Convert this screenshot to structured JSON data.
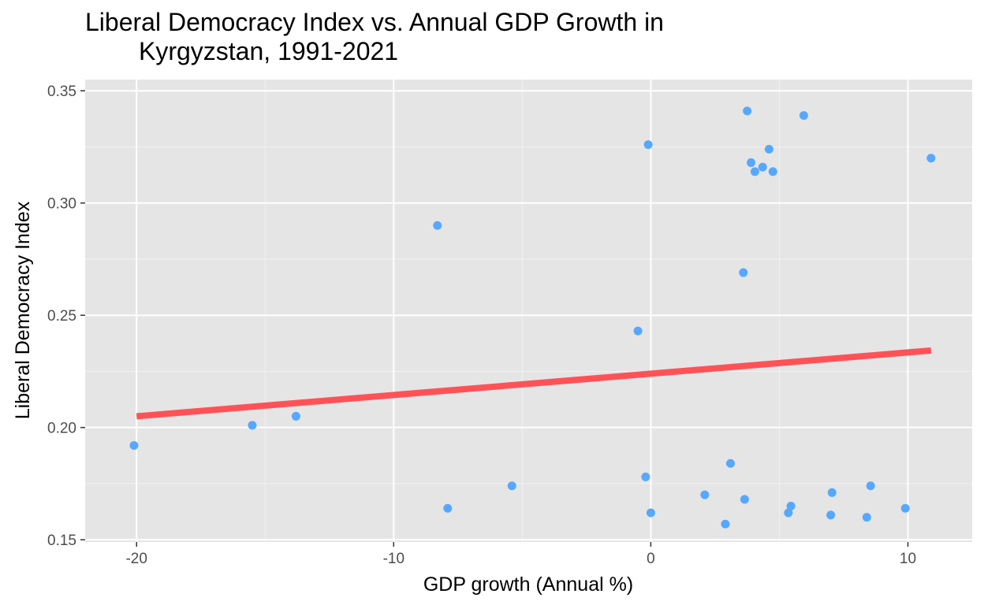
{
  "chart_data": {
    "type": "scatter",
    "title_line1": "Liberal Democracy Index vs. Annual GDP Growth in",
    "title_line2": "Kyrgyzstan, 1991-2021",
    "xlabel": "GDP growth (Annual %)",
    "ylabel": "Liberal Democracy Index",
    "xlim": [
      -22.0,
      12.5
    ],
    "ylim": [
      0.149,
      0.355
    ],
    "x_ticks": [
      -20,
      -10,
      0,
      10
    ],
    "x_tick_labels": [
      "-20",
      "-10",
      "0",
      "10"
    ],
    "y_ticks": [
      0.15,
      0.2,
      0.25,
      0.3,
      0.35
    ],
    "y_tick_labels": [
      "0.15",
      "0.20",
      "0.25",
      "0.30",
      "0.35"
    ],
    "grid": true,
    "background": "#e5e5e5",
    "point_color": "#56a8ff",
    "line_color": "#ff5257",
    "points": [
      {
        "x": -20.1,
        "y": 0.192
      },
      {
        "x": -15.5,
        "y": 0.201
      },
      {
        "x": -13.8,
        "y": 0.205
      },
      {
        "x": -8.3,
        "y": 0.29
      },
      {
        "x": -7.9,
        "y": 0.164
      },
      {
        "x": -5.4,
        "y": 0.174
      },
      {
        "x": -0.5,
        "y": 0.243
      },
      {
        "x": -0.2,
        "y": 0.178
      },
      {
        "x": -0.1,
        "y": 0.326
      },
      {
        "x": 0.0,
        "y": 0.162
      },
      {
        "x": 2.1,
        "y": 0.17
      },
      {
        "x": 2.9,
        "y": 0.157
      },
      {
        "x": 3.1,
        "y": 0.184
      },
      {
        "x": 3.6,
        "y": 0.269
      },
      {
        "x": 3.65,
        "y": 0.168
      },
      {
        "x": 3.75,
        "y": 0.341
      },
      {
        "x": 3.9,
        "y": 0.318
      },
      {
        "x": 4.05,
        "y": 0.314
      },
      {
        "x": 4.35,
        "y": 0.316
      },
      {
        "x": 4.6,
        "y": 0.324
      },
      {
        "x": 4.75,
        "y": 0.314
      },
      {
        "x": 5.35,
        "y": 0.162
      },
      {
        "x": 5.45,
        "y": 0.165
      },
      {
        "x": 5.95,
        "y": 0.339
      },
      {
        "x": 7.0,
        "y": 0.161
      },
      {
        "x": 7.05,
        "y": 0.171
      },
      {
        "x": 8.4,
        "y": 0.16
      },
      {
        "x": 8.55,
        "y": 0.174
      },
      {
        "x": 9.9,
        "y": 0.164
      },
      {
        "x": 10.9,
        "y": 0.32
      }
    ],
    "trend_line": {
      "x": [
        -20.0,
        10.9
      ],
      "y": [
        0.205,
        0.2343
      ]
    }
  }
}
